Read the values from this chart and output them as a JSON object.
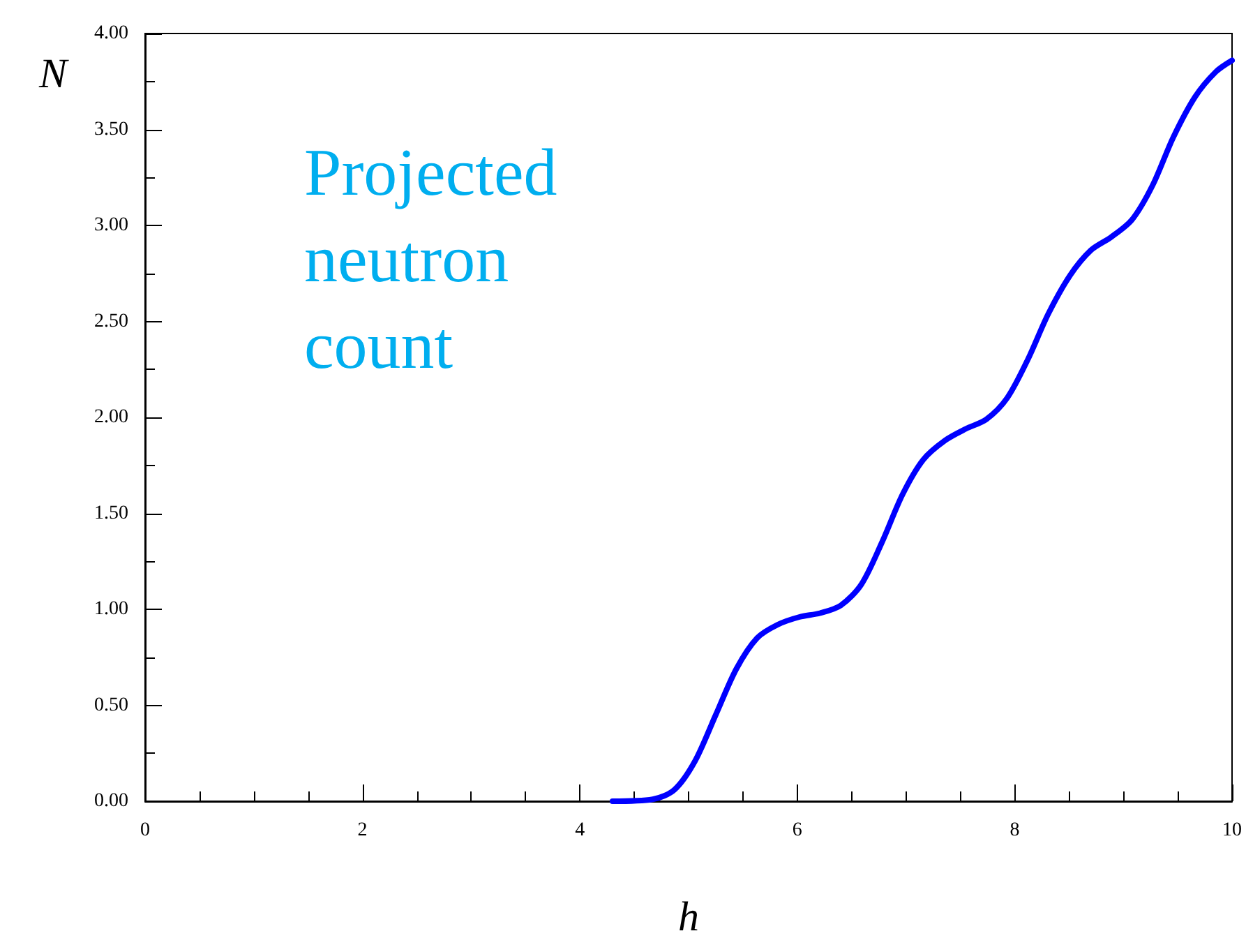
{
  "chart_data": {
    "type": "line",
    "xlabel": "h",
    "ylabel": "N",
    "annotations": [
      "Projected\nneutron\ncount"
    ],
    "x": [
      4.3,
      4.67,
      4.87,
      5.06,
      5.25,
      5.44,
      5.63,
      5.82,
      6.02,
      6.21,
      6.4,
      6.59,
      6.78,
      6.97,
      7.16,
      7.36,
      7.55,
      7.74,
      7.93,
      8.12,
      8.31,
      8.51,
      8.7,
      8.89,
      9.08,
      9.27,
      9.46,
      9.66,
      9.85,
      10
    ],
    "series": [
      {
        "color": "#0000ff",
        "values": [
          0,
          0.01,
          0.06,
          0.21,
          0.45,
          0.69,
          0.85,
          0.92,
          0.96,
          0.98,
          1.02,
          1.13,
          1.35,
          1.6,
          1.78,
          1.88,
          1.94,
          1.99,
          2.1,
          2.3,
          2.54,
          2.74,
          2.87,
          2.94,
          3.03,
          3.21,
          3.46,
          3.67,
          3.8,
          3.86
        ]
      }
    ],
    "xlim": [
      0,
      10
    ],
    "xticks": [
      0,
      2,
      4,
      6,
      8,
      10
    ],
    "ylim": [
      0,
      4
    ],
    "yticks": [
      {
        "value": 0,
        "label": "0.00"
      },
      {
        "value": 0.5,
        "label": "0.50"
      },
      {
        "value": 1,
        "label": "1.00"
      },
      {
        "value": 1.5,
        "label": "1.50"
      },
      {
        "value": 2,
        "label": "2.00"
      },
      {
        "value": 2.5,
        "label": "2.50"
      },
      {
        "value": 3,
        "label": "3.00"
      },
      {
        "value": 3.5,
        "label": "3.50"
      },
      {
        "value": 4,
        "label": "4.00"
      }
    ],
    "grid": false,
    "marker": "none",
    "line_style": "solid"
  }
}
